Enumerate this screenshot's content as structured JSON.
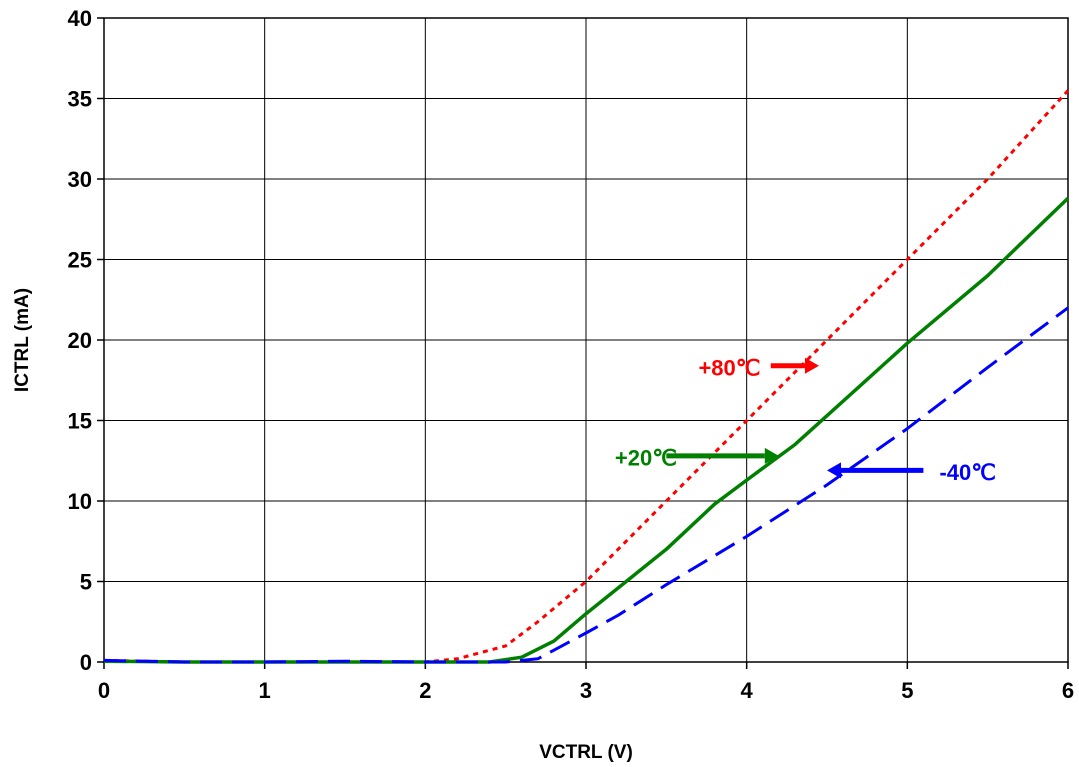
{
  "chart_data": {
    "type": "line",
    "xlabel": "VCTRL (V)",
    "ylabel": "ICTRL (mA)",
    "xlim": [
      0,
      6
    ],
    "ylim": [
      0,
      40
    ],
    "x_ticks": [
      "0",
      "1",
      "2",
      "3",
      "4",
      "5",
      "6"
    ],
    "y_ticks": [
      "0",
      "5",
      "10",
      "15",
      "20",
      "25",
      "30",
      "35",
      "40"
    ],
    "grid": true,
    "legend": "none",
    "series": [
      {
        "name": "+80℃",
        "color": "#ff0000",
        "style": "dotted",
        "points": [
          [
            0,
            0.1
          ],
          [
            0.5,
            0
          ],
          [
            1,
            0
          ],
          [
            1.5,
            0
          ],
          [
            2,
            0
          ],
          [
            2.2,
            0.2
          ],
          [
            2.5,
            1
          ],
          [
            2.7,
            2.5
          ],
          [
            3,
            5
          ],
          [
            3.5,
            10
          ],
          [
            4,
            15
          ],
          [
            4.5,
            20
          ],
          [
            5,
            25
          ],
          [
            5.5,
            30
          ],
          [
            6,
            35.5
          ]
        ]
      },
      {
        "name": "+20℃",
        "color": "#008000",
        "style": "solid",
        "points": [
          [
            0,
            0.05
          ],
          [
            0.5,
            0
          ],
          [
            1,
            0
          ],
          [
            1.5,
            0
          ],
          [
            2,
            0
          ],
          [
            2.4,
            0
          ],
          [
            2.6,
            0.3
          ],
          [
            2.8,
            1.3
          ],
          [
            3,
            3
          ],
          [
            3.5,
            7
          ],
          [
            3.8,
            9.8
          ],
          [
            4,
            11.3
          ],
          [
            4.3,
            13.5
          ],
          [
            4.5,
            15.3
          ],
          [
            5,
            19.8
          ],
          [
            5.5,
            24
          ],
          [
            6,
            28.8
          ]
        ]
      },
      {
        "name": "-40℃",
        "color": "#0000ff",
        "style": "dashed",
        "points": [
          [
            0,
            0.1
          ],
          [
            0.5,
            0
          ],
          [
            1,
            0
          ],
          [
            1.5,
            0.05
          ],
          [
            2,
            0
          ],
          [
            2.5,
            0
          ],
          [
            2.7,
            0.2
          ],
          [
            3,
            1.8
          ],
          [
            3.2,
            2.9
          ],
          [
            3.5,
            4.8
          ],
          [
            4,
            7.8
          ],
          [
            4.5,
            11
          ],
          [
            5,
            14.5
          ],
          [
            5.5,
            18.3
          ],
          [
            6,
            22
          ]
        ]
      }
    ],
    "annotations": [
      {
        "text": "+80℃",
        "series": "+80℃",
        "color": "#ff0000",
        "x": 3.7,
        "y": 18.3,
        "arrow_from": [
          4.15,
          18.4
        ],
        "arrow_to": [
          4.45,
          18.4
        ]
      },
      {
        "text": "+20℃",
        "series": "+20℃",
        "color": "#008000",
        "x": 3.18,
        "y": 12.7,
        "arrow_from": [
          3.5,
          12.8
        ],
        "arrow_to": [
          4.2,
          12.8
        ]
      },
      {
        "text": "-40℃",
        "series": "-40℃",
        "color": "#0000ff",
        "x": 5.2,
        "y": 11.8,
        "arrow_from": [
          5.1,
          11.9
        ],
        "arrow_to": [
          4.5,
          11.9
        ]
      }
    ]
  }
}
